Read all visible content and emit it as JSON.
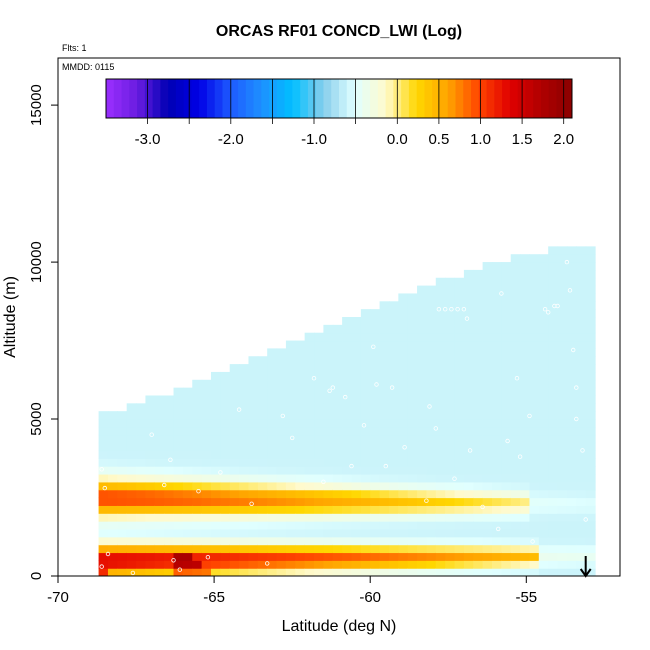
{
  "chart_data": {
    "type": "heatmap",
    "title": "ORCAS RF01 CONCD_LWI (Log)",
    "annotations": {
      "flights": "Flts: 1",
      "date": "MMDD: 0115"
    },
    "xlabel": "Latitude (deg N)",
    "ylabel": "Altitude (m)",
    "xlim": [
      -70,
      -52
    ],
    "ylim": [
      0,
      16500
    ],
    "x_ticks": [
      -70,
      -65,
      -60,
      -55
    ],
    "y_ticks": [
      0,
      5000,
      10000,
      15000
    ],
    "x_tick_labels": [
      "-70",
      "-65",
      "-60",
      "-55"
    ],
    "y_tick_labels": [
      "0",
      "5000",
      "10000",
      "15000"
    ],
    "colorbar": {
      "range": [
        -3.5,
        2.1
      ],
      "ticks": [
        -3.0,
        -2.0,
        -1.0,
        0.0,
        0.5,
        1.0,
        1.5,
        2.0
      ],
      "tick_labels": [
        "-3.0",
        "-2.0",
        "-1.0",
        "0.0",
        "0.5",
        "1.0",
        "1.5",
        "2.0"
      ],
      "colors": [
        "#9b30ff",
        "#6a1ce0",
        "#0000b4",
        "#0000e6",
        "#1e5aff",
        "#1e90ff",
        "#00bfff",
        "#87ceeb",
        "#e0ffff",
        "#fffacd",
        "#ffd700",
        "#ffa500",
        "#ff4500",
        "#e00000",
        "#b00000",
        "#8b0000"
      ]
    },
    "domain": {
      "lat_range": [
        -68.7,
        -53.0
      ],
      "top_profile": [
        {
          "lat": -68.7,
          "alt": 5000
        },
        {
          "lat": -66.5,
          "alt": 5700
        },
        {
          "lat": -64,
          "alt": 6700
        },
        {
          "lat": -61,
          "alt": 8000
        },
        {
          "lat": -58,
          "alt": 9200
        },
        {
          "lat": -55.5,
          "alt": 10000
        },
        {
          "lat": -53.0,
          "alt": 10500
        }
      ]
    },
    "layers": [
      {
        "name": "upper_cloud",
        "alt": 2500,
        "lat_start": -68.5,
        "lat_end": -55.0,
        "peak_value": 1.6
      },
      {
        "name": "lower_cloud",
        "alt": 500,
        "lat_start": -68.0,
        "lat_end": -54.5,
        "peak_value": 2.0
      }
    ],
    "observation_points": [
      [
        -68.6,
        3400
      ],
      [
        -68.5,
        2800
      ],
      [
        -68.6,
        300
      ],
      [
        -68.4,
        700
      ],
      [
        -67.6,
        100
      ],
      [
        -67.0,
        4500
      ],
      [
        -66.6,
        2900
      ],
      [
        -66.4,
        3700
      ],
      [
        -66.3,
        500
      ],
      [
        -66.1,
        200
      ],
      [
        -65.5,
        2700
      ],
      [
        -65.2,
        600
      ],
      [
        -64.8,
        3300
      ],
      [
        -64.2,
        5300
      ],
      [
        -63.8,
        2300
      ],
      [
        -63.3,
        400
      ],
      [
        -62.8,
        5100
      ],
      [
        -62.5,
        4400
      ],
      [
        -61.8,
        6300
      ],
      [
        -61.5,
        3000
      ],
      [
        -61.3,
        5900
      ],
      [
        -61.2,
        6000
      ],
      [
        -60.8,
        5700
      ],
      [
        -60.6,
        3500
      ],
      [
        -60.2,
        4800
      ],
      [
        -59.9,
        7300
      ],
      [
        -59.8,
        6100
      ],
      [
        -59.5,
        3500
      ],
      [
        -59.3,
        6000
      ],
      [
        -58.9,
        4100
      ],
      [
        -58.2,
        2400
      ],
      [
        -58.1,
        5400
      ],
      [
        -57.9,
        4700
      ],
      [
        -57.8,
        8500
      ],
      [
        -57.6,
        8500
      ],
      [
        -57.4,
        8500
      ],
      [
        -57.2,
        8500
      ],
      [
        -57.0,
        8500
      ],
      [
        -56.9,
        8200
      ],
      [
        -56.4,
        2200
      ],
      [
        -55.8,
        9000
      ],
      [
        -55.6,
        4300
      ],
      [
        -55.3,
        6300
      ],
      [
        -54.8,
        1100
      ],
      [
        -54.4,
        8500
      ],
      [
        -54.3,
        8400
      ],
      [
        -54.1,
        8600
      ],
      [
        -54.0,
        8600
      ],
      [
        -53.7,
        10000
      ],
      [
        -53.6,
        9100
      ],
      [
        -53.5,
        7200
      ],
      [
        -53.4,
        5000
      ],
      [
        -53.2,
        4000
      ],
      [
        -53.1,
        1800
      ],
      [
        -53.4,
        6000
      ],
      [
        -54.9,
        5100
      ],
      [
        -55.9,
        1500
      ],
      [
        -56.8,
        4000
      ],
      [
        -57.3,
        3100
      ],
      [
        -55.2,
        3800
      ]
    ],
    "marker": {
      "type": "down-arrow",
      "lat": -53.1
    },
    "grid": false,
    "legend": "colorbar top"
  }
}
